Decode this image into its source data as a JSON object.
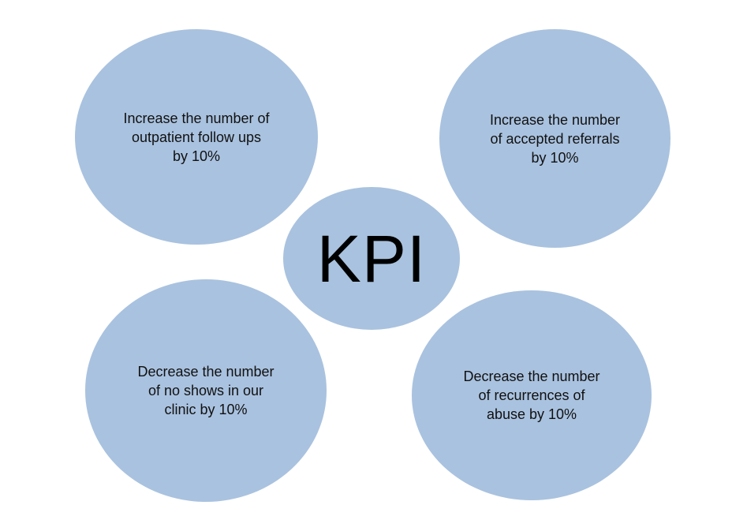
{
  "colors": {
    "circle_fill": "#a9c2df",
    "text": "#111111",
    "background": "#ffffff"
  },
  "center": {
    "label": "KPI"
  },
  "goals": {
    "top_left": "Increase the number of\noutpatient follow ups\nby 10%",
    "top_right": "Increase the number\nof accepted referrals\nby 10%",
    "bottom_left": "Decrease the number\nof no shows in our\nclinic by 10%",
    "bottom_right": "Decrease the number\nof recurrences of\nabuse by 10%"
  }
}
